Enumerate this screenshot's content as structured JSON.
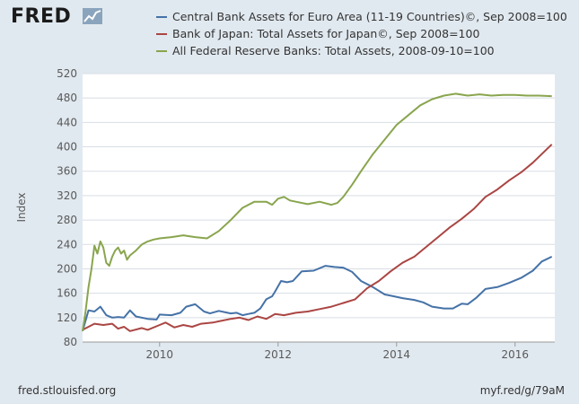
{
  "header": {
    "logo_text": "FRED"
  },
  "footer": {
    "source": "fred.stlouisfed.org",
    "short_url": "myf.red/g/79aM"
  },
  "chart_data": {
    "type": "line",
    "title": "",
    "xlabel": "",
    "ylabel": "Index",
    "xlim": [
      2008.7,
      2016.67
    ],
    "ylim": [
      80,
      520
    ],
    "y_ticks": [
      80,
      120,
      160,
      200,
      240,
      280,
      320,
      360,
      400,
      440,
      480,
      520
    ],
    "x_ticks": [
      2010,
      2012,
      2014,
      2016
    ],
    "x_tick_labels": [
      "2010",
      "2012",
      "2014",
      "2016"
    ],
    "grid": true,
    "legend_position": "top",
    "series": [
      {
        "name": "Central Bank Assets for Euro Area (11-19 Countries)©, Sep 2008=100",
        "color": "#4572a7",
        "x": [
          2008.7,
          2008.8,
          2008.9,
          2009.0,
          2009.1,
          2009.2,
          2009.3,
          2009.4,
          2009.5,
          2009.6,
          2009.8,
          2009.95,
          2010.0,
          2010.2,
          2010.35,
          2010.45,
          2010.6,
          2010.75,
          2010.85,
          2011.0,
          2011.2,
          2011.3,
          2011.4,
          2011.5,
          2011.6,
          2011.7,
          2011.8,
          2011.9,
          2011.95,
          2012.05,
          2012.15,
          2012.25,
          2012.4,
          2012.6,
          2012.8,
          2012.95,
          2013.1,
          2013.25,
          2013.4,
          2013.6,
          2013.8,
          2013.95,
          2014.1,
          2014.3,
          2014.45,
          2014.6,
          2014.8,
          2014.95,
          2015.1,
          2015.2,
          2015.35,
          2015.5,
          2015.7,
          2015.9,
          2016.1,
          2016.3,
          2016.45,
          2016.62
        ],
        "values": [
          98,
          132,
          130,
          138,
          124,
          120,
          121,
          120,
          132,
          122,
          118,
          117,
          125,
          124,
          128,
          138,
          142,
          130,
          127,
          131,
          127,
          128,
          124,
          126,
          128,
          135,
          150,
          155,
          163,
          180,
          178,
          180,
          196,
          197,
          205,
          203,
          202,
          195,
          180,
          170,
          158,
          155,
          152,
          149,
          145,
          138,
          135,
          135,
          143,
          142,
          153,
          167,
          170,
          177,
          185,
          197,
          212,
          220
        ]
      },
      {
        "name": "Bank of Japan: Total Assets for Japan©, Sep 2008=100",
        "color": "#aa4643",
        "x": [
          2008.7,
          2008.9,
          2009.05,
          2009.2,
          2009.3,
          2009.4,
          2009.5,
          2009.7,
          2009.8,
          2010.0,
          2010.1,
          2010.25,
          2010.4,
          2010.55,
          2010.7,
          2010.9,
          2011.0,
          2011.2,
          2011.35,
          2011.5,
          2011.65,
          2011.8,
          2011.95,
          2012.1,
          2012.3,
          2012.5,
          2012.7,
          2012.9,
          2013.1,
          2013.3,
          2013.5,
          2013.7,
          2013.9,
          2014.1,
          2014.3,
          2014.5,
          2014.7,
          2014.9,
          2015.1,
          2015.3,
          2015.5,
          2015.7,
          2015.9,
          2016.1,
          2016.3,
          2016.62
        ],
        "values": [
          100,
          110,
          108,
          110,
          102,
          105,
          98,
          103,
          100,
          108,
          112,
          104,
          108,
          105,
          110,
          112,
          114,
          118,
          120,
          116,
          122,
          118,
          126,
          124,
          128,
          130,
          134,
          138,
          144,
          150,
          168,
          180,
          196,
          210,
          220,
          236,
          252,
          268,
          282,
          298,
          318,
          330,
          345,
          358,
          374,
          404
        ]
      },
      {
        "name": "All Federal Reserve Banks: Total Assets, 2008-09-10=100",
        "color": "#89a54e",
        "x": [
          2008.7,
          2008.75,
          2008.8,
          2008.85,
          2008.9,
          2008.95,
          2009.0,
          2009.05,
          2009.1,
          2009.15,
          2009.2,
          2009.25,
          2009.3,
          2009.35,
          2009.4,
          2009.45,
          2009.5,
          2009.6,
          2009.7,
          2009.8,
          2009.9,
          2010.0,
          2010.2,
          2010.4,
          2010.6,
          2010.8,
          2011.0,
          2011.2,
          2011.4,
          2011.6,
          2011.8,
          2011.9,
          2012.0,
          2012.1,
          2012.2,
          2012.3,
          2012.5,
          2012.7,
          2012.9,
          2013.0,
          2013.1,
          2013.25,
          2013.4,
          2013.6,
          2013.8,
          2014.0,
          2014.2,
          2014.4,
          2014.6,
          2014.8,
          2015.0,
          2015.2,
          2015.4,
          2015.6,
          2015.8,
          2016.0,
          2016.2,
          2016.4,
          2016.62
        ],
        "values": [
          98,
          130,
          170,
          200,
          238,
          225,
          245,
          235,
          210,
          205,
          220,
          230,
          235,
          225,
          230,
          215,
          222,
          230,
          240,
          245,
          248,
          250,
          252,
          255,
          252,
          250,
          262,
          280,
          300,
          310,
          310,
          305,
          315,
          318,
          312,
          310,
          306,
          310,
          305,
          308,
          318,
          338,
          360,
          388,
          412,
          436,
          452,
          468,
          478,
          484,
          487,
          484,
          486,
          484,
          485,
          485,
          484,
          484,
          483
        ]
      }
    ]
  }
}
